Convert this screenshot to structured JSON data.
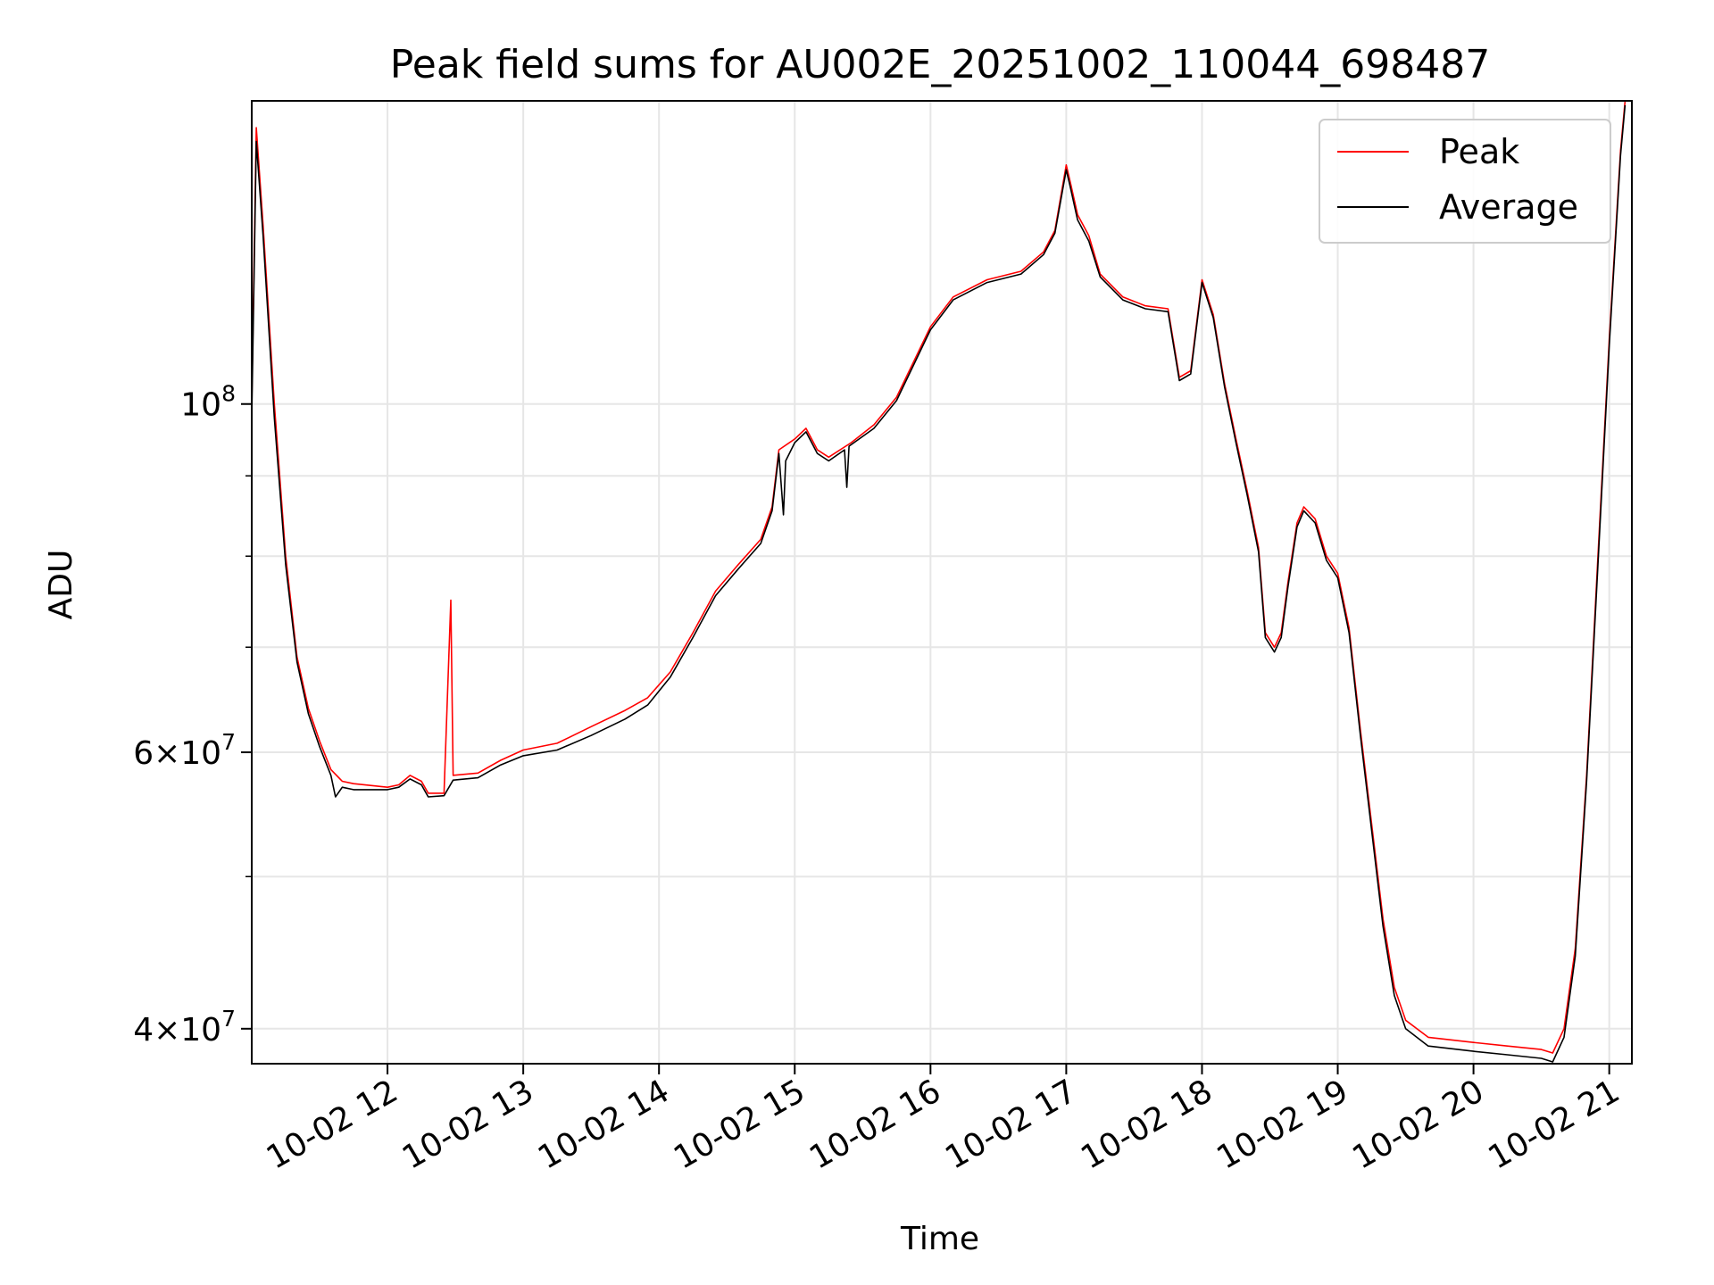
{
  "chart_data": {
    "type": "line",
    "title": "Peak field sums for AU002E_20251002_110044_698487",
    "xlabel": "Time",
    "ylabel": "ADU",
    "y_scale": "log",
    "ylim": [
      38000000,
      156000000
    ],
    "xlim": [
      "2025-10-02 11:00",
      "2025-10-02 21:10"
    ],
    "grid": true,
    "legend_position": "top-right",
    "x_ticks": [
      {
        "t": "2025-10-02 12:00",
        "label": "10-02 12"
      },
      {
        "t": "2025-10-02 13:00",
        "label": "10-02 13"
      },
      {
        "t": "2025-10-02 14:00",
        "label": "10-02 14"
      },
      {
        "t": "2025-10-02 15:00",
        "label": "10-02 15"
      },
      {
        "t": "2025-10-02 16:00",
        "label": "10-02 16"
      },
      {
        "t": "2025-10-02 17:00",
        "label": "10-02 17"
      },
      {
        "t": "2025-10-02 18:00",
        "label": "10-02 18"
      },
      {
        "t": "2025-10-02 19:00",
        "label": "10-02 19"
      },
      {
        "t": "2025-10-02 20:00",
        "label": "10-02 20"
      },
      {
        "t": "2025-10-02 21:00",
        "label": "10-02 21"
      }
    ],
    "y_major_ticks": [
      {
        "value": 40000000,
        "mantissa": "4",
        "exponent": "7"
      },
      {
        "value": 60000000,
        "mantissa": "6",
        "exponent": "7"
      },
      {
        "value": 100000000,
        "mantissa": "",
        "exponent": "8"
      }
    ],
    "y_minor_ticks": [
      50000000,
      70000000,
      80000000,
      90000000
    ],
    "series": [
      {
        "name": "Peak",
        "color": "#ff0000",
        "points": [
          [
            "2025-10-02 11:00",
            100000000
          ],
          [
            "2025-10-02 11:02",
            150000000
          ],
          [
            "2025-10-02 11:05",
            130000000
          ],
          [
            "2025-10-02 11:10",
            100000000
          ],
          [
            "2025-10-02 11:15",
            80000000
          ],
          [
            "2025-10-02 11:20",
            69000000
          ],
          [
            "2025-10-02 11:25",
            64000000
          ],
          [
            "2025-10-02 11:30",
            61000000
          ],
          [
            "2025-10-02 11:35",
            58500000
          ],
          [
            "2025-10-02 11:40",
            57500000
          ],
          [
            "2025-10-02 11:45",
            57300000
          ],
          [
            "2025-10-02 12:00",
            57000000
          ],
          [
            "2025-10-02 12:05",
            57200000
          ],
          [
            "2025-10-02 12:10",
            58000000
          ],
          [
            "2025-10-02 12:15",
            57500000
          ],
          [
            "2025-10-02 12:18",
            56500000
          ],
          [
            "2025-10-02 12:25",
            56500000
          ],
          [
            "2025-10-02 12:28",
            75000000
          ],
          [
            "2025-10-02 12:29",
            58000000
          ],
          [
            "2025-10-02 12:40",
            58200000
          ],
          [
            "2025-10-02 12:50",
            59300000
          ],
          [
            "2025-10-02 13:00",
            60200000
          ],
          [
            "2025-10-02 13:15",
            60800000
          ],
          [
            "2025-10-02 13:30",
            62300000
          ],
          [
            "2025-10-02 13:45",
            63800000
          ],
          [
            "2025-10-02 13:55",
            65000000
          ],
          [
            "2025-10-02 14:05",
            67500000
          ],
          [
            "2025-10-02 14:15",
            71500000
          ],
          [
            "2025-10-02 14:25",
            76000000
          ],
          [
            "2025-10-02 14:35",
            79000000
          ],
          [
            "2025-10-02 14:45",
            82000000
          ],
          [
            "2025-10-02 14:50",
            86000000
          ],
          [
            "2025-10-02 14:53",
            93500000
          ],
          [
            "2025-10-02 15:00",
            95000000
          ],
          [
            "2025-10-02 15:05",
            96500000
          ],
          [
            "2025-10-02 15:10",
            93500000
          ],
          [
            "2025-10-02 15:15",
            92500000
          ],
          [
            "2025-10-02 15:25",
            94500000
          ],
          [
            "2025-10-02 15:35",
            97000000
          ],
          [
            "2025-10-02 15:45",
            101000000
          ],
          [
            "2025-10-02 16:00",
            112000000
          ],
          [
            "2025-10-02 16:10",
            117000000
          ],
          [
            "2025-10-02 16:25",
            120000000
          ],
          [
            "2025-10-02 16:40",
            121500000
          ],
          [
            "2025-10-02 16:50",
            125000000
          ],
          [
            "2025-10-02 16:55",
            129000000
          ],
          [
            "2025-10-02 17:00",
            142000000
          ],
          [
            "2025-10-02 17:02",
            138000000
          ],
          [
            "2025-10-02 17:05",
            132000000
          ],
          [
            "2025-10-02 17:10",
            128000000
          ],
          [
            "2025-10-02 17:15",
            121000000
          ],
          [
            "2025-10-02 17:25",
            117000000
          ],
          [
            "2025-10-02 17:35",
            115500000
          ],
          [
            "2025-10-02 17:45",
            115000000
          ],
          [
            "2025-10-02 17:50",
            104000000
          ],
          [
            "2025-10-02 17:55",
            105000000
          ],
          [
            "2025-10-02 18:00",
            120000000
          ],
          [
            "2025-10-02 18:05",
            114000000
          ],
          [
            "2025-10-02 18:10",
            103000000
          ],
          [
            "2025-10-02 18:15",
            95000000
          ],
          [
            "2025-10-02 18:20",
            88000000
          ],
          [
            "2025-10-02 18:25",
            81000000
          ],
          [
            "2025-10-02 18:28",
            71500000
          ],
          [
            "2025-10-02 18:32",
            70000000
          ],
          [
            "2025-10-02 18:35",
            71500000
          ],
          [
            "2025-10-02 18:38",
            77000000
          ],
          [
            "2025-10-02 18:42",
            84000000
          ],
          [
            "2025-10-02 18:45",
            86000000
          ],
          [
            "2025-10-02 18:50",
            84500000
          ],
          [
            "2025-10-02 18:55",
            80000000
          ],
          [
            "2025-10-02 19:00",
            78000000
          ],
          [
            "2025-10-02 19:05",
            72000000
          ],
          [
            "2025-10-02 19:10",
            62000000
          ],
          [
            "2025-10-02 19:15",
            54000000
          ],
          [
            "2025-10-02 19:20",
            47000000
          ],
          [
            "2025-10-02 19:25",
            42500000
          ],
          [
            "2025-10-02 19:30",
            40500000
          ],
          [
            "2025-10-02 19:40",
            39500000
          ],
          [
            "2025-10-02 20:00",
            39200000
          ],
          [
            "2025-10-02 20:15",
            39000000
          ],
          [
            "2025-10-02 20:30",
            38800000
          ],
          [
            "2025-10-02 20:35",
            38600000
          ],
          [
            "2025-10-02 20:40",
            40000000
          ],
          [
            "2025-10-02 20:45",
            45000000
          ],
          [
            "2025-10-02 20:50",
            58000000
          ],
          [
            "2025-10-02 20:55",
            80000000
          ],
          [
            "2025-10-02 21:00",
            110000000
          ],
          [
            "2025-10-02 21:05",
            145000000
          ],
          [
            "2025-10-02 21:07",
            156000000
          ]
        ]
      },
      {
        "name": "Average",
        "color": "#000000",
        "points": [
          [
            "2025-10-02 11:00",
            98000000
          ],
          [
            "2025-10-02 11:02",
            147000000
          ],
          [
            "2025-10-02 11:05",
            128000000
          ],
          [
            "2025-10-02 11:10",
            98000000
          ],
          [
            "2025-10-02 11:15",
            79000000
          ],
          [
            "2025-10-02 11:20",
            68500000
          ],
          [
            "2025-10-02 11:25",
            63500000
          ],
          [
            "2025-10-02 11:30",
            60500000
          ],
          [
            "2025-10-02 11:35",
            58000000
          ],
          [
            "2025-10-02 11:37",
            56200000
          ],
          [
            "2025-10-02 11:40",
            57000000
          ],
          [
            "2025-10-02 11:45",
            56800000
          ],
          [
            "2025-10-02 12:00",
            56800000
          ],
          [
            "2025-10-02 12:05",
            57000000
          ],
          [
            "2025-10-02 12:10",
            57700000
          ],
          [
            "2025-10-02 12:15",
            57200000
          ],
          [
            "2025-10-02 12:18",
            56200000
          ],
          [
            "2025-10-02 12:25",
            56300000
          ],
          [
            "2025-10-02 12:29",
            57600000
          ],
          [
            "2025-10-02 12:40",
            57800000
          ],
          [
            "2025-10-02 12:50",
            58900000
          ],
          [
            "2025-10-02 13:00",
            59700000
          ],
          [
            "2025-10-02 13:15",
            60200000
          ],
          [
            "2025-10-02 13:30",
            61500000
          ],
          [
            "2025-10-02 13:45",
            63000000
          ],
          [
            "2025-10-02 13:55",
            64300000
          ],
          [
            "2025-10-02 14:05",
            67000000
          ],
          [
            "2025-10-02 14:15",
            71000000
          ],
          [
            "2025-10-02 14:25",
            75500000
          ],
          [
            "2025-10-02 14:35",
            78500000
          ],
          [
            "2025-10-02 14:45",
            81500000
          ],
          [
            "2025-10-02 14:50",
            85500000
          ],
          [
            "2025-10-02 14:53",
            93000000
          ],
          [
            "2025-10-02 14:55",
            85000000
          ],
          [
            "2025-10-02 14:56",
            92000000
          ],
          [
            "2025-10-02 15:00",
            94500000
          ],
          [
            "2025-10-02 15:05",
            96000000
          ],
          [
            "2025-10-02 15:10",
            93000000
          ],
          [
            "2025-10-02 15:15",
            92000000
          ],
          [
            "2025-10-02 15:22",
            93500000
          ],
          [
            "2025-10-02 15:23",
            88500000
          ],
          [
            "2025-10-02 15:24",
            94000000
          ],
          [
            "2025-10-02 15:35",
            96500000
          ],
          [
            "2025-10-02 15:45",
            100500000
          ],
          [
            "2025-10-02 16:00",
            111500000
          ],
          [
            "2025-10-02 16:10",
            116500000
          ],
          [
            "2025-10-02 16:25",
            119500000
          ],
          [
            "2025-10-02 16:40",
            121000000
          ],
          [
            "2025-10-02 16:50",
            124500000
          ],
          [
            "2025-10-02 16:55",
            128500000
          ],
          [
            "2025-10-02 17:00",
            141000000
          ],
          [
            "2025-10-02 17:02",
            137000000
          ],
          [
            "2025-10-02 17:05",
            131000000
          ],
          [
            "2025-10-02 17:10",
            127000000
          ],
          [
            "2025-10-02 17:15",
            120500000
          ],
          [
            "2025-10-02 17:25",
            116500000
          ],
          [
            "2025-10-02 17:35",
            115000000
          ],
          [
            "2025-10-02 17:45",
            114500000
          ],
          [
            "2025-10-02 17:50",
            103500000
          ],
          [
            "2025-10-02 17:55",
            104500000
          ],
          [
            "2025-10-02 18:00",
            119500000
          ],
          [
            "2025-10-02 18:05",
            113500000
          ],
          [
            "2025-10-02 18:10",
            102500000
          ],
          [
            "2025-10-02 18:15",
            94500000
          ],
          [
            "2025-10-02 18:20",
            87500000
          ],
          [
            "2025-10-02 18:25",
            80500000
          ],
          [
            "2025-10-02 18:28",
            71000000
          ],
          [
            "2025-10-02 18:32",
            69500000
          ],
          [
            "2025-10-02 18:35",
            71000000
          ],
          [
            "2025-10-02 18:38",
            76500000
          ],
          [
            "2025-10-02 18:42",
            83500000
          ],
          [
            "2025-10-02 18:45",
            85500000
          ],
          [
            "2025-10-02 18:50",
            84000000
          ],
          [
            "2025-10-02 18:55",
            79500000
          ],
          [
            "2025-10-02 19:00",
            77500000
          ],
          [
            "2025-10-02 19:05",
            71500000
          ],
          [
            "2025-10-02 19:10",
            61500000
          ],
          [
            "2025-10-02 19:15",
            53500000
          ],
          [
            "2025-10-02 19:20",
            46500000
          ],
          [
            "2025-10-02 19:25",
            42000000
          ],
          [
            "2025-10-02 19:30",
            40000000
          ],
          [
            "2025-10-02 19:40",
            39000000
          ],
          [
            "2025-10-02 20:00",
            38700000
          ],
          [
            "2025-10-02 20:15",
            38500000
          ],
          [
            "2025-10-02 20:30",
            38300000
          ],
          [
            "2025-10-02 20:35",
            38100000
          ],
          [
            "2025-10-02 20:40",
            39500000
          ],
          [
            "2025-10-02 20:45",
            44500000
          ],
          [
            "2025-10-02 20:50",
            57500000
          ],
          [
            "2025-10-02 20:55",
            79000000
          ],
          [
            "2025-10-02 21:00",
            109000000
          ],
          [
            "2025-10-02 21:05",
            144000000
          ],
          [
            "2025-10-02 21:07",
            155000000
          ]
        ]
      }
    ]
  }
}
